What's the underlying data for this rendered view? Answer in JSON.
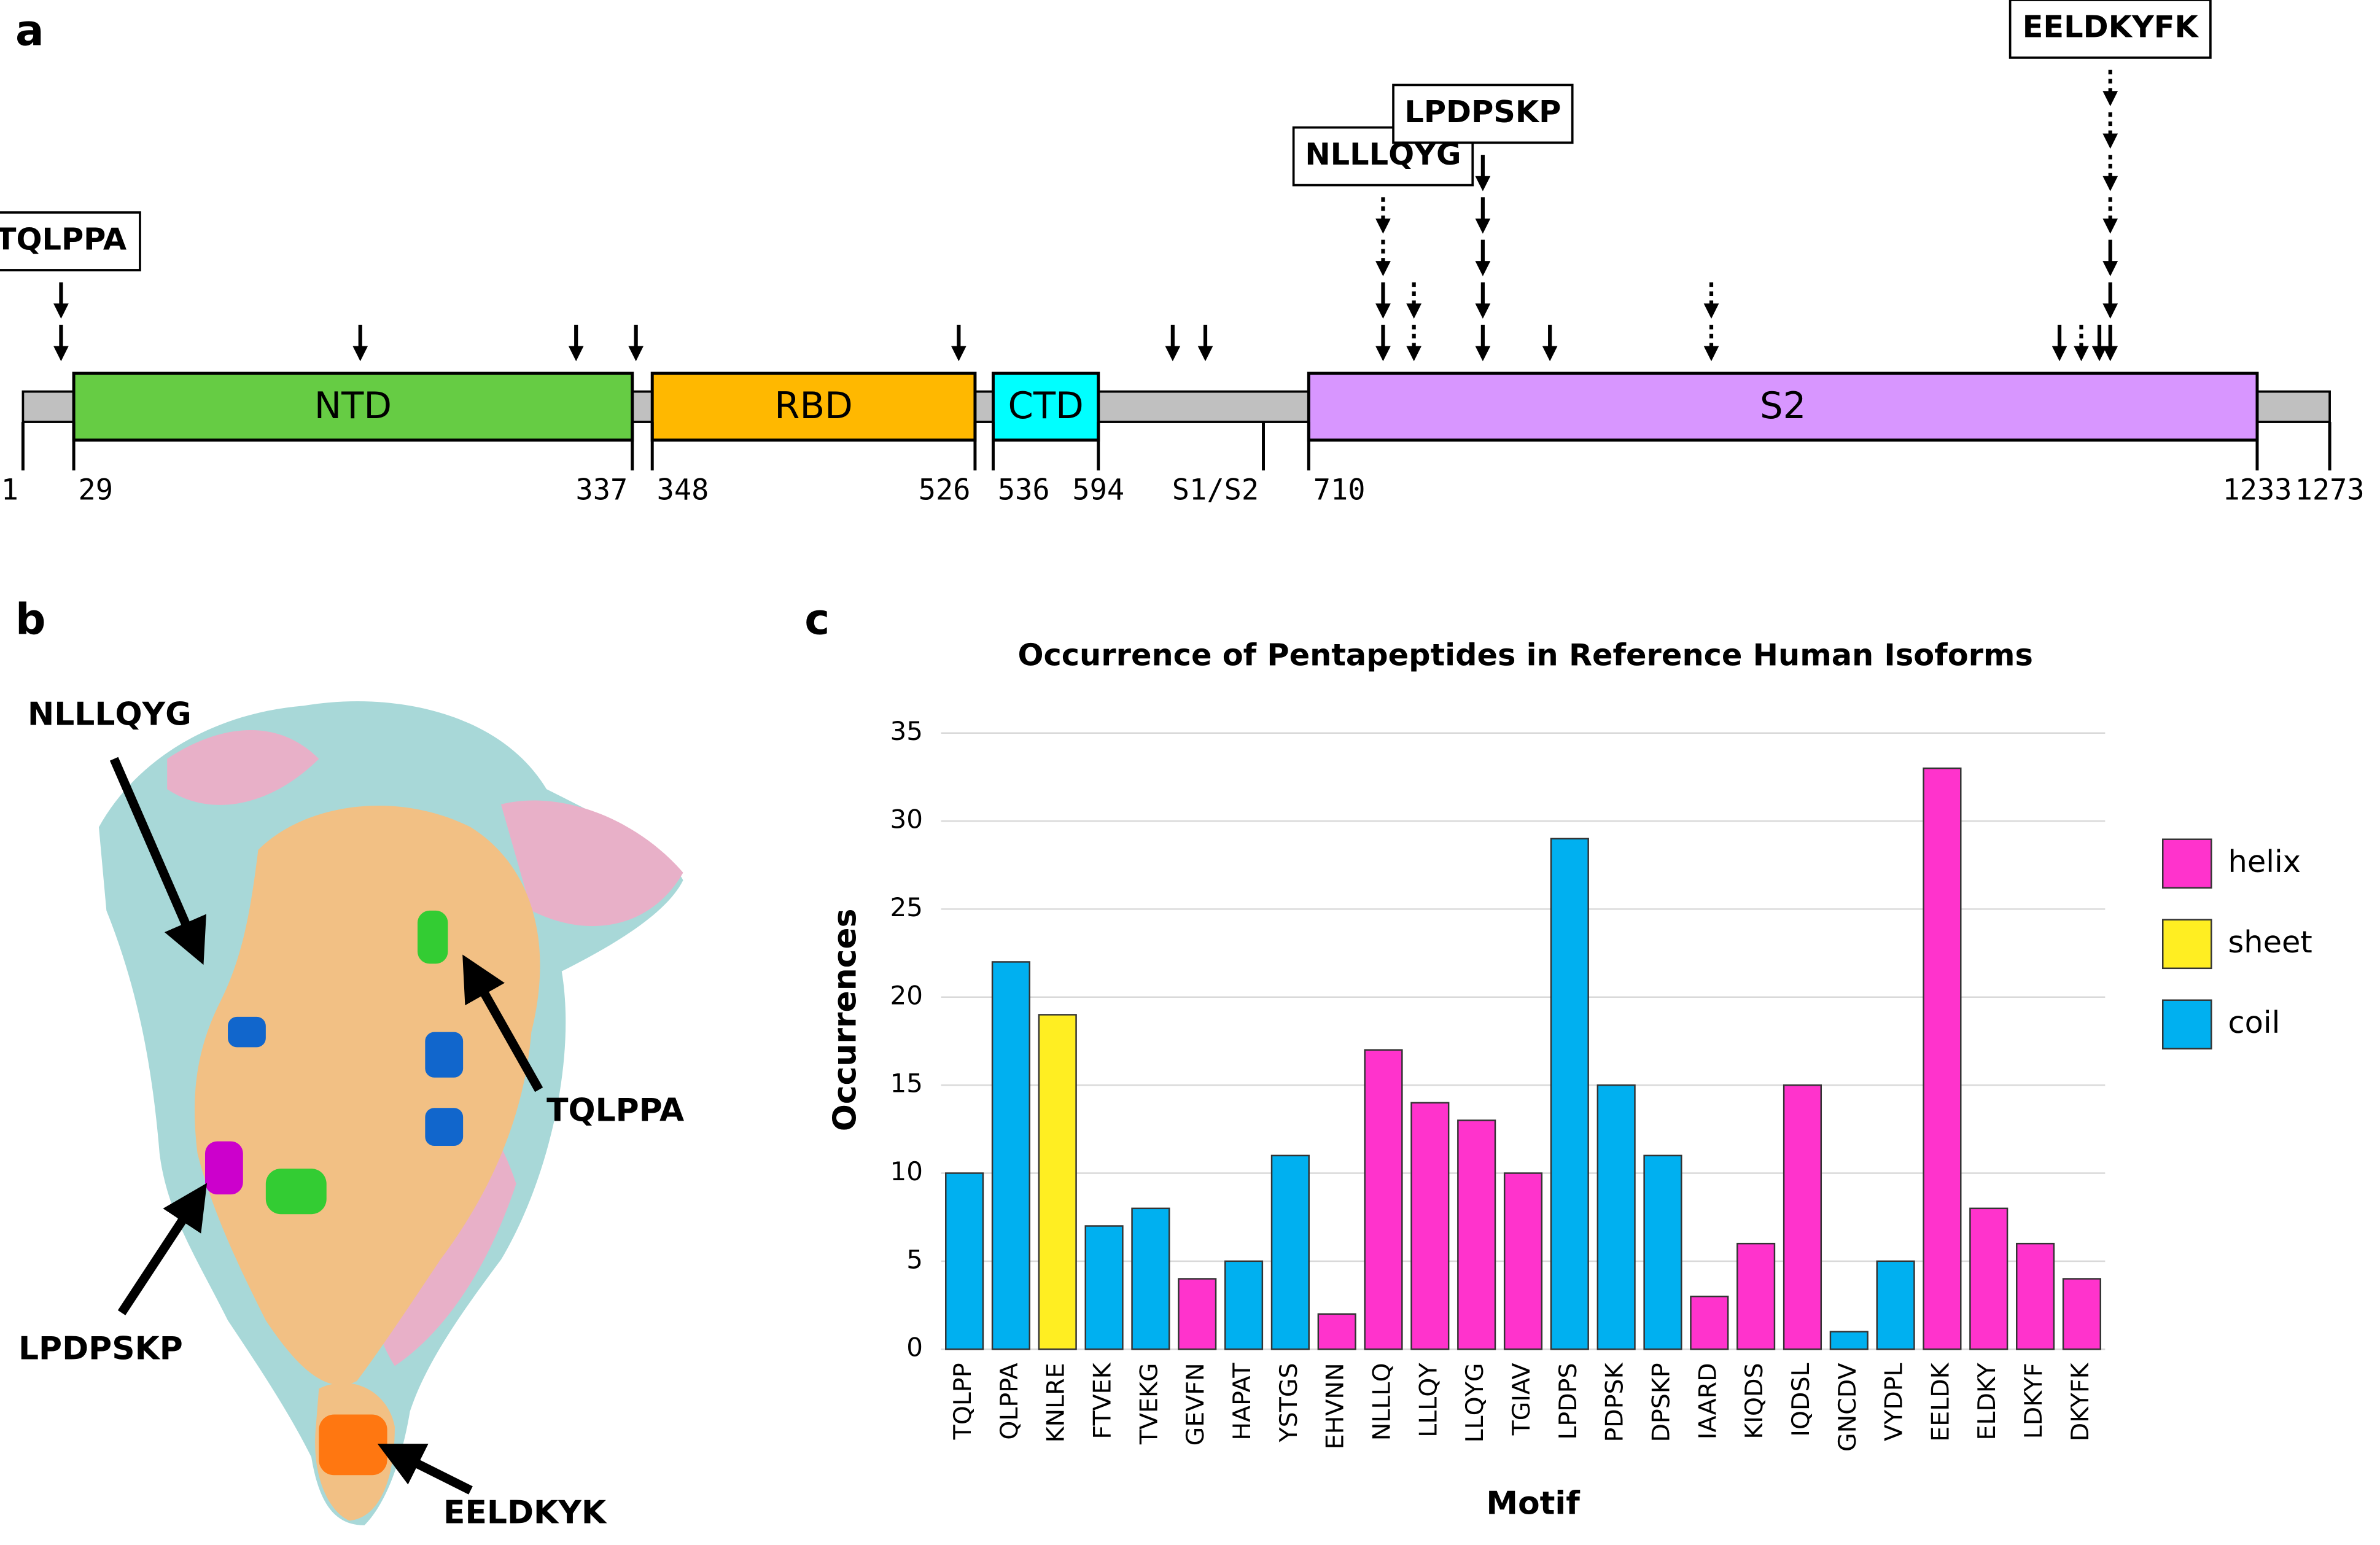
{
  "panel_labels": [
    "a",
    "b",
    "c"
  ],
  "domain_map": {
    "xlim": [
      1,
      1273
    ],
    "backbone_color": "#c0c0c0",
    "domains": [
      {
        "name": "NTD",
        "start": 29,
        "end": 337,
        "color": "#66cc44"
      },
      {
        "name": "RBD",
        "start": 348,
        "end": 526,
        "color": "#ffb800"
      },
      {
        "name": "CTD",
        "start": 536,
        "end": 594,
        "color": "#00ffff"
      },
      {
        "name": "S2",
        "start": 710,
        "end": 1233,
        "color": "#d896ff"
      }
    ],
    "ticks": [
      1,
      29,
      337,
      348,
      526,
      536,
      594,
      {
        "value": 685,
        "label": "S1/S2"
      },
      710,
      1233,
      1273
    ],
    "arrows": [
      {
        "pos": 22,
        "stack": [
          "solid",
          "solid"
        ],
        "motif": "TQLPPA"
      },
      {
        "pos": 187,
        "stack": [
          "solid"
        ]
      },
      {
        "pos": 306,
        "stack": [
          "solid"
        ]
      },
      {
        "pos": 339,
        "stack": [
          "solid"
        ]
      },
      {
        "pos": 517,
        "stack": [
          "solid"
        ]
      },
      {
        "pos": 635,
        "stack": [
          "solid"
        ]
      },
      {
        "pos": 653,
        "stack": [
          "solid"
        ]
      },
      {
        "pos": 751,
        "stack": [
          "solid",
          "solid",
          "dotted",
          "dotted"
        ],
        "motif": "NLLLQYG"
      },
      {
        "pos": 768,
        "stack": [
          "dotted",
          "dotted"
        ]
      },
      {
        "pos": 806,
        "stack": [
          "solid",
          "solid",
          "solid",
          "solid",
          "solid"
        ],
        "motif": "LPDPSKP"
      },
      {
        "pos": 843,
        "stack": [
          "solid"
        ]
      },
      {
        "pos": 932,
        "stack": [
          "dotted",
          "dotted"
        ]
      },
      {
        "pos": 1124,
        "stack": [
          "solid"
        ]
      },
      {
        "pos": 1136,
        "stack": [
          "dotted"
        ]
      },
      {
        "pos": 1146,
        "stack": [
          "solid"
        ]
      },
      {
        "pos": 1152,
        "stack": [
          "solid",
          "solid",
          "solid",
          "dotted",
          "dotted",
          "dotted",
          "dotted"
        ],
        "motif": "EELDKYFK"
      }
    ]
  },
  "structure_labels": [
    "NLLLQYG",
    "TQLPPA",
    "LPDPSKP",
    "EELDKYK"
  ],
  "chart_data": {
    "type": "bar",
    "title": "Occurrence of Pentapeptides in Reference Human Isoforms",
    "x_label": "Motif",
    "y_label": "Occurrences",
    "categories": [
      "TQLPP",
      "QLPPA",
      "KNLRE",
      "FTVEK",
      "TVEKG",
      "GEVFN",
      "HAPAT",
      "YSTGS",
      "EHVNN",
      "NLLLQ",
      "LLLQY",
      "LLQYG",
      "TGIAV",
      "LPDPS",
      "PDPSK",
      "DPSKP",
      "IAARD",
      "KIQDS",
      "IQDSL",
      "GNCDV",
      "VYDPL",
      "EELDK",
      "ELDKY",
      "LDKYF",
      "DKYFK"
    ],
    "series": [
      {
        "name": "helix",
        "color": "#ff33cc",
        "values": [
          null,
          null,
          null,
          null,
          null,
          4,
          null,
          null,
          2,
          17,
          14,
          13,
          10,
          null,
          null,
          null,
          3,
          6,
          15,
          null,
          null,
          33,
          8,
          6,
          4
        ]
      },
      {
        "name": "sheet",
        "color": "#ffee22",
        "values": [
          null,
          null,
          19,
          null,
          null,
          null,
          null,
          null,
          null,
          null,
          null,
          null,
          null,
          null,
          null,
          null,
          null,
          null,
          null,
          null,
          null,
          null,
          null,
          null,
          null
        ]
      },
      {
        "name": "coil",
        "color": "#00b0f0",
        "values": [
          10,
          22,
          null,
          7,
          8,
          null,
          5,
          11,
          null,
          null,
          null,
          null,
          null,
          29,
          15,
          11,
          null,
          null,
          null,
          1,
          5,
          null,
          null,
          null,
          null
        ]
      }
    ],
    "ylim": [
      0,
      35
    ],
    "yticks": [
      0,
      5,
      10,
      15,
      20,
      25,
      30,
      35
    ],
    "grid": true,
    "legend": "right"
  }
}
